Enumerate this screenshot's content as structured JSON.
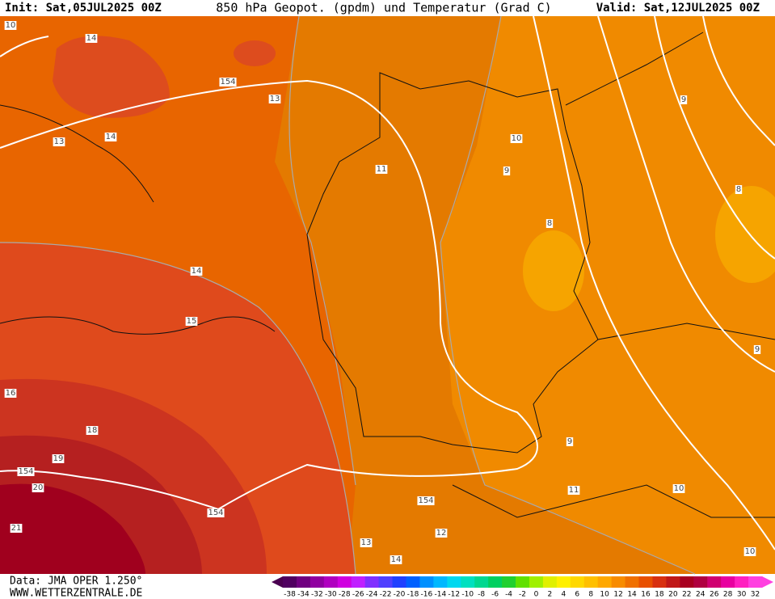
{
  "header": {
    "init": "Init: Sat,05JUL2025 00Z",
    "title": "850 hPa Geopot. (gpdm) und Temperatur (Grad C)",
    "valid": "Valid: Sat,12JUL2025 00Z"
  },
  "footer": {
    "data_source": "Data: JMA OPER 1.250°",
    "website": "WWW.WETTERZENTRALE.DE"
  },
  "colorbar": {
    "labels": [
      -38,
      -34,
      -32,
      -30,
      -28,
      -26,
      -24,
      -22,
      -20,
      -18,
      -16,
      -14,
      -12,
      -10,
      -8,
      -6,
      -4,
      -2,
      0,
      2,
      4,
      6,
      8,
      10,
      12,
      14,
      16,
      18,
      20,
      22,
      24,
      26,
      28,
      30,
      32
    ]
  },
  "contour_labels": [
    10,
    14,
    154,
    13,
    13,
    14,
    11,
    10,
    9,
    9,
    8,
    8,
    14,
    15,
    9,
    16,
    18,
    19,
    154,
    20,
    154,
    154,
    11,
    9,
    10,
    12,
    13,
    14,
    21,
    10
  ]
}
